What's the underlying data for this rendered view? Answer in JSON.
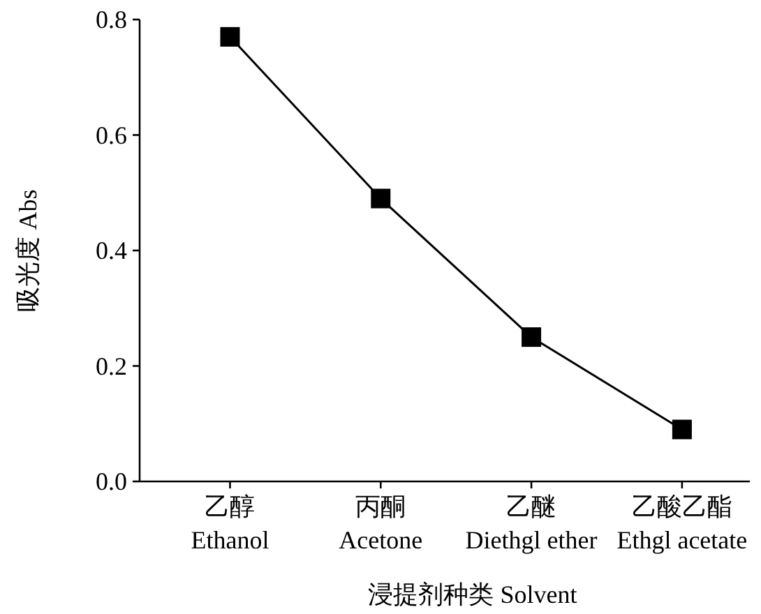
{
  "chart_data": {
    "type": "line",
    "xlabel": "浸提剂种类  Solvent",
    "ylabel": "吸光度 Abs",
    "categories": [
      "乙醇\nEthanol",
      "丙酮\nAcetone",
      "乙醚\nDiethgl ether",
      "乙酸乙酯\nEthgl acetate"
    ],
    "series": [
      {
        "color": "#000000",
        "values": [
          0.77,
          0.49,
          0.25,
          0.09
        ]
      }
    ],
    "ylim": [
      0,
      0.8
    ],
    "yticks": [
      {
        "value": 0,
        "label": "0.0"
      },
      {
        "value": 0.2,
        "label": "0.2"
      },
      {
        "value": 0.4,
        "label": "0.4"
      },
      {
        "value": 0.6,
        "label": "0.6"
      },
      {
        "value": 0.8,
        "label": "0.8"
      }
    ],
    "marker": "square",
    "line_style": "solid",
    "grid": false
  }
}
